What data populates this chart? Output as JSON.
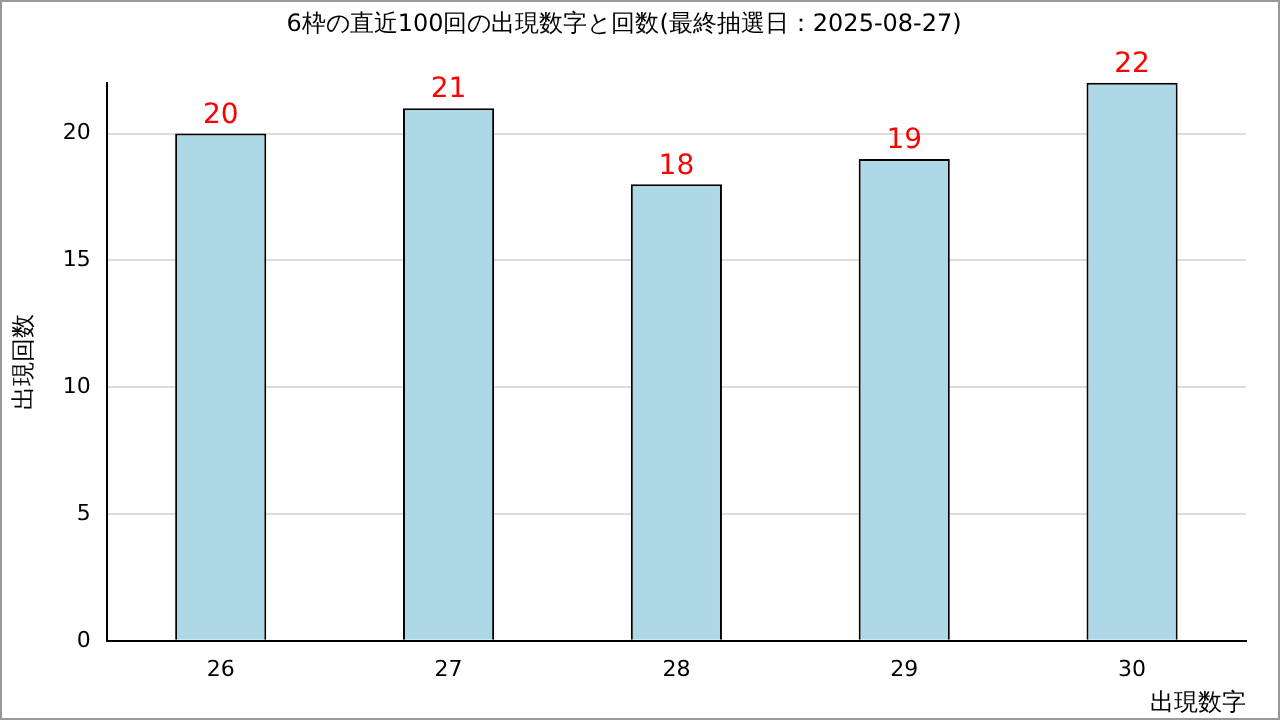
{
  "chart_data": {
    "type": "bar",
    "title": "6枠の直近100回の出現数字と回数(最終抽選日：2025-08-27)",
    "xlabel": "出現数字",
    "ylabel": "出現回数",
    "categories": [
      "26",
      "27",
      "28",
      "29",
      "30"
    ],
    "values": [
      20,
      21,
      18,
      19,
      22
    ],
    "color": "#add8e6",
    "ylim": [
      0,
      22
    ],
    "yticks": [
      0,
      5,
      10,
      15,
      20
    ],
    "grid": "y",
    "data_labels": true
  }
}
